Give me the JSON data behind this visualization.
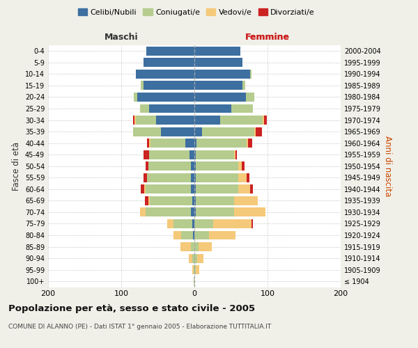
{
  "age_groups": [
    "100+",
    "95-99",
    "90-94",
    "85-89",
    "80-84",
    "75-79",
    "70-74",
    "65-69",
    "60-64",
    "55-59",
    "50-54",
    "45-49",
    "40-44",
    "35-39",
    "30-34",
    "25-29",
    "20-24",
    "15-19",
    "10-14",
    "5-9",
    "0-4"
  ],
  "birth_years": [
    "≤ 1904",
    "1905-1909",
    "1910-1914",
    "1915-1919",
    "1920-1924",
    "1925-1929",
    "1930-1934",
    "1935-1939",
    "1940-1944",
    "1945-1949",
    "1950-1954",
    "1955-1959",
    "1960-1964",
    "1965-1969",
    "1970-1974",
    "1975-1979",
    "1980-1984",
    "1985-1989",
    "1990-1994",
    "1995-1999",
    "2000-2004"
  ],
  "maschi_celibi": [
    0,
    0,
    0,
    0,
    2,
    3,
    5,
    3,
    5,
    5,
    5,
    7,
    12,
    46,
    52,
    62,
    78,
    70,
    80,
    70,
    66
  ],
  "maschi_coniugati": [
    1,
    1,
    3,
    5,
    16,
    26,
    62,
    58,
    62,
    60,
    58,
    55,
    48,
    38,
    28,
    12,
    5,
    3,
    0,
    0,
    0
  ],
  "maschi_vedovi": [
    0,
    2,
    5,
    14,
    11,
    8,
    7,
    2,
    2,
    0,
    0,
    0,
    2,
    0,
    2,
    0,
    0,
    0,
    0,
    0,
    0
  ],
  "maschi_divorziati": [
    0,
    0,
    0,
    0,
    0,
    0,
    0,
    5,
    4,
    5,
    4,
    8,
    3,
    0,
    2,
    0,
    0,
    0,
    0,
    0,
    0
  ],
  "femmine_nubili": [
    0,
    0,
    0,
    0,
    0,
    0,
    2,
    2,
    2,
    2,
    2,
    2,
    3,
    10,
    35,
    50,
    70,
    66,
    76,
    66,
    63
  ],
  "femmine_coniugate": [
    0,
    2,
    4,
    6,
    20,
    26,
    52,
    52,
    58,
    58,
    58,
    52,
    68,
    72,
    58,
    30,
    12,
    4,
    2,
    0,
    0
  ],
  "femmine_vedove": [
    0,
    5,
    8,
    18,
    36,
    52,
    43,
    33,
    16,
    11,
    5,
    2,
    2,
    2,
    2,
    0,
    0,
    0,
    0,
    0,
    0
  ],
  "femmine_divorziate": [
    0,
    0,
    0,
    0,
    0,
    2,
    0,
    0,
    4,
    4,
    4,
    2,
    6,
    8,
    4,
    0,
    0,
    0,
    0,
    0,
    0
  ],
  "color_celibi": "#3d6fa0",
  "color_coniugati": "#b5cc8e",
  "color_vedovi": "#f5c97a",
  "color_divorziati": "#cc2222",
  "bg_color": "#f0f0e8",
  "plot_bg": "#ffffff",
  "xlim": 200,
  "title": "Popolazione per età, sesso e stato civile - 2005",
  "subtitle": "COMUNE DI ALANNO (PE) - Dati ISTAT 1° gennaio 2005 - Elaborazione TUTTITALIA.IT",
  "ylabel_left": "Fasce di età",
  "ylabel_right": "Anni di nascita",
  "label_maschi": "Maschi",
  "label_femmine": "Femmine",
  "legend_celibi": "Celibi/Nubili",
  "legend_coniugati": "Coniugati/e",
  "legend_vedovi": "Vedovi/e",
  "legend_divorziati": "Divorziati/e"
}
